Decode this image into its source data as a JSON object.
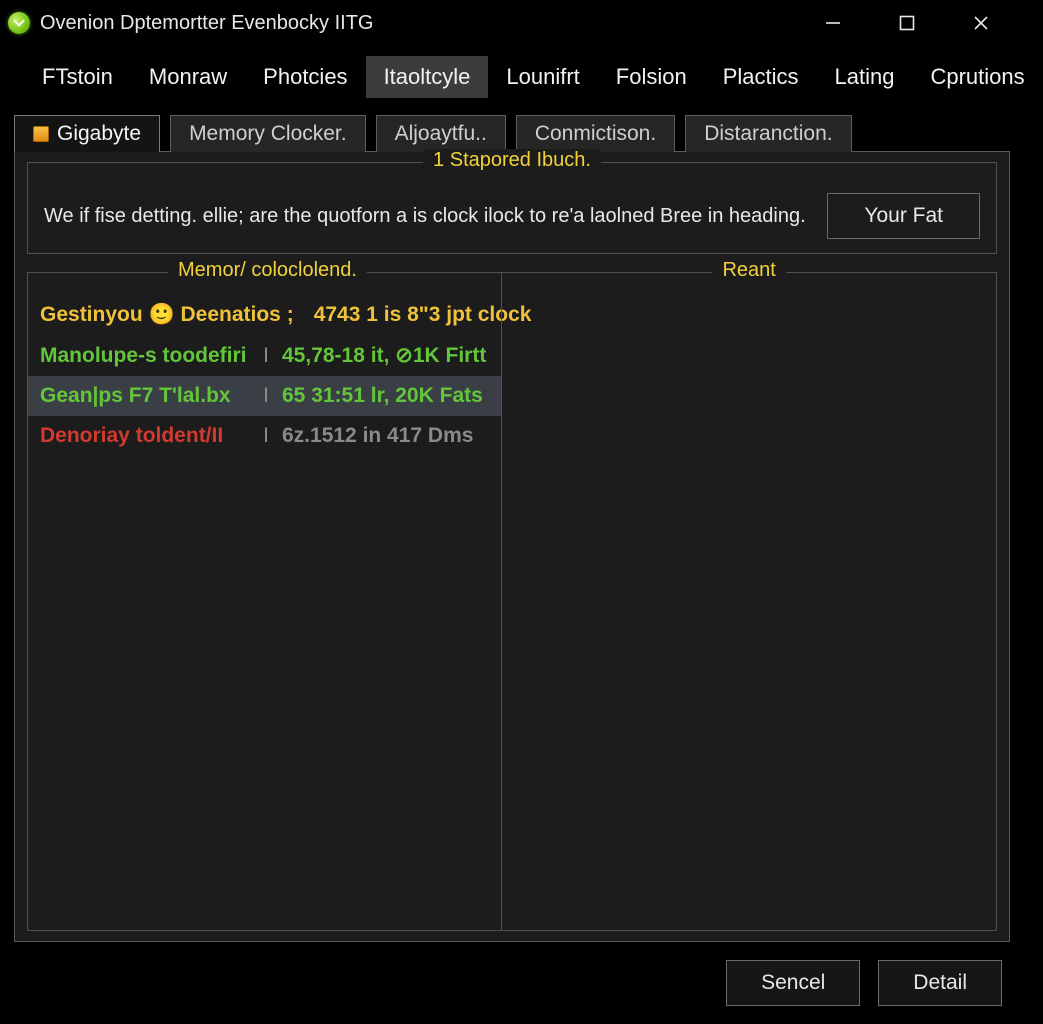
{
  "window": {
    "title": "Ovenion Dptemortter Evenbocky IITG"
  },
  "menu": {
    "items": [
      {
        "label": "FTstoin"
      },
      {
        "label": "Monraw"
      },
      {
        "label": "Photcies"
      },
      {
        "label": "Itaoltcyle",
        "active": true
      },
      {
        "label": "Lounifrt"
      },
      {
        "label": "Folsion"
      },
      {
        "label": "Plactics"
      },
      {
        "label": "Lating"
      },
      {
        "label": "Cprutions"
      }
    ]
  },
  "tabs": {
    "items": [
      {
        "label": "Gigabyte",
        "active": true,
        "has_icon": true
      },
      {
        "label": "Memory Clocker."
      },
      {
        "label": "Aljoaytfu.."
      },
      {
        "label": "Conmictison."
      },
      {
        "label": "Distaranction."
      }
    ]
  },
  "info_box": {
    "legend": "1 Stapored Ibuch.",
    "text": "We if fise detting. ellie; are the quotforn a is clock ilock to re'a laolned Bree in heading.",
    "button": "Your Fat"
  },
  "panel_left": {
    "legend": "Memor/ coloclolend.",
    "rows": [
      {
        "a": "Gestinyou 🙂 Deenatios ;",
        "b": "4743 1 is 8\"3 jpt clock",
        "color": "#f0c23a",
        "selected": false,
        "has_icon": false
      },
      {
        "a": "Manolupe-s toodefiri",
        "b": "45,78-18 it, ⊘1K Firtt",
        "color": "#63c63a",
        "selected": false,
        "has_icon": false
      },
      {
        "a": "Gean|ps F7 T'lal.bx",
        "b": "65 31:51 lr, 20K Fats",
        "color": "#63c63a",
        "selected": true,
        "has_icon": false
      },
      {
        "a": "Denoriay toldent/II",
        "b": "6z.1512 in 417 Dms",
        "color": "#d23a2f",
        "b_color": "#8a8a8a",
        "selected": false,
        "has_icon": false
      }
    ]
  },
  "panel_right": {
    "legend": "Reant"
  },
  "footer": {
    "cancel": "Sencel",
    "detail": "Detail"
  },
  "colors": {
    "bg": "#000000",
    "panel_bg": "#1c1c1c",
    "border": "#505050",
    "legend": "#f2d13a",
    "text": "#e8e8e8",
    "row_yellow": "#f0c23a",
    "row_green": "#63c63a",
    "row_red": "#d23a2f",
    "row_selected_bg": "#3a3f46"
  }
}
